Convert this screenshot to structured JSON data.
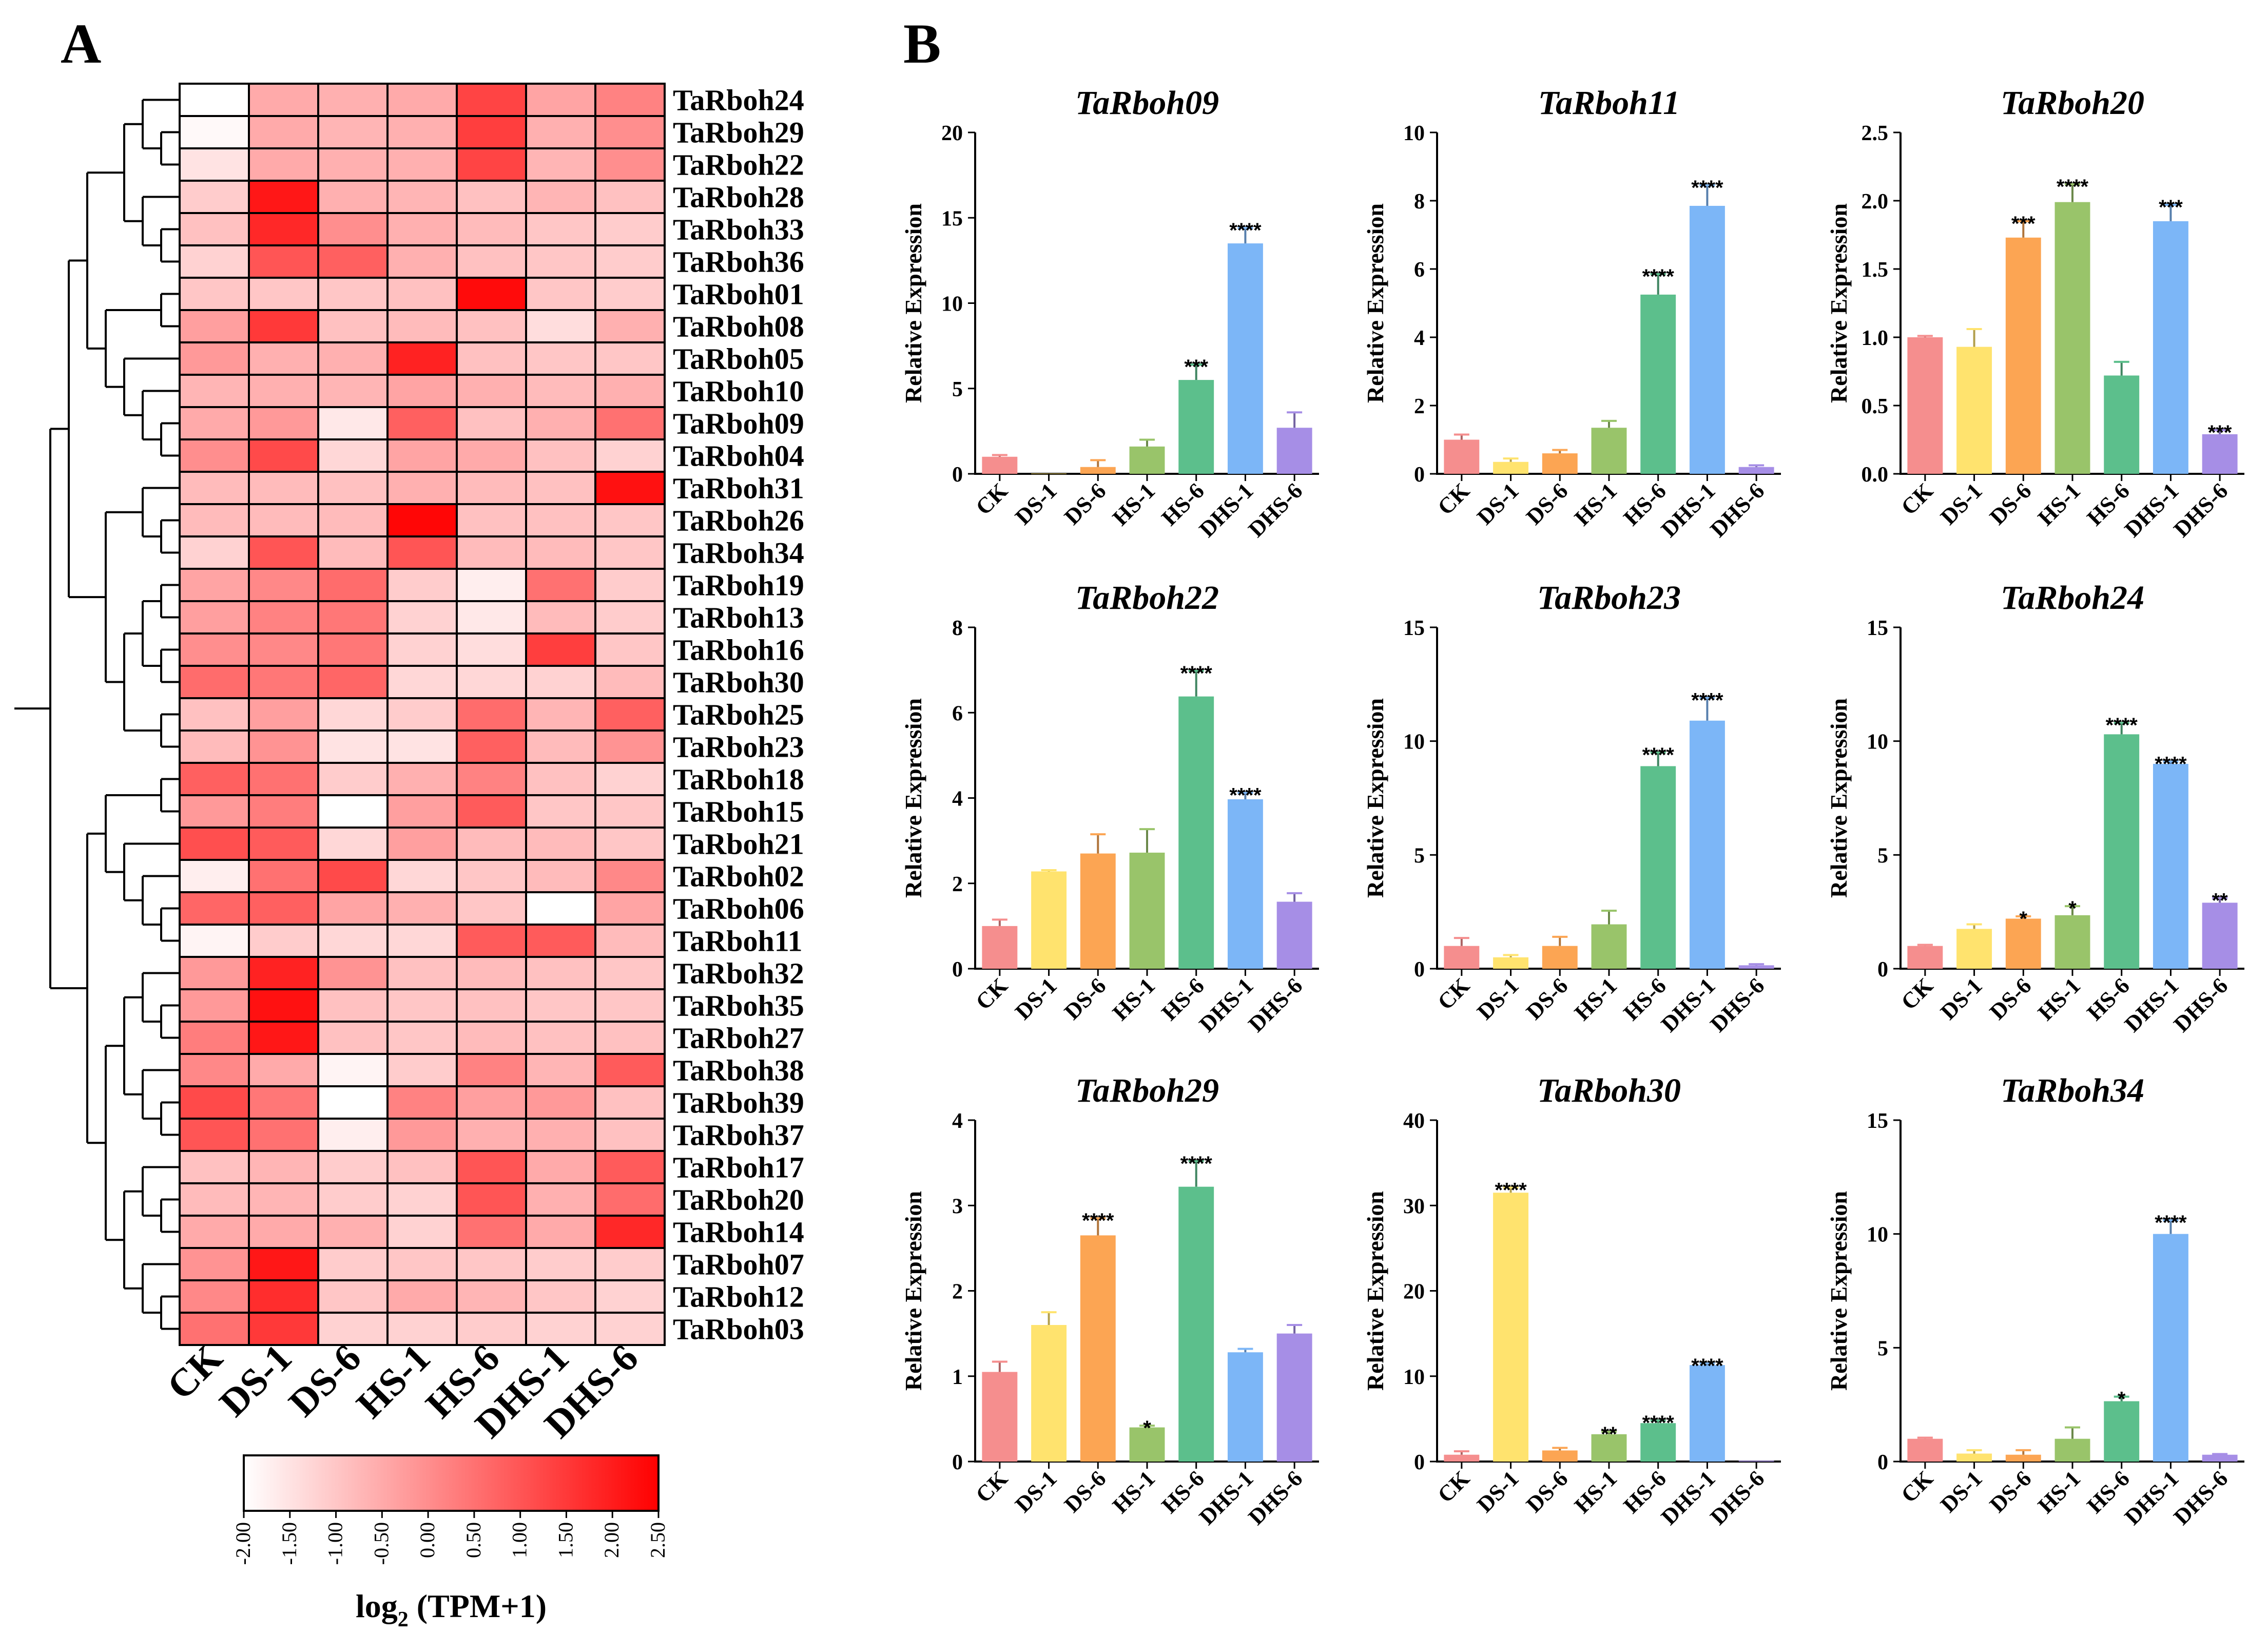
{
  "panels": {
    "a_label": "A",
    "b_label": "B"
  },
  "chart_data": [
    {
      "type": "heatmap",
      "panel": "A",
      "columns": [
        "CK",
        "DS-1",
        "DS-6",
        "HS-1",
        "HS-6",
        "DHS-1",
        "DHS-6"
      ],
      "rows": [
        "TaRboh24",
        "TaRboh29",
        "TaRboh22",
        "TaRboh28",
        "TaRboh33",
        "TaRboh36",
        "TaRboh01",
        "TaRboh08",
        "TaRboh05",
        "TaRboh10",
        "TaRboh09",
        "TaRboh04",
        "TaRboh31",
        "TaRboh26",
        "TaRboh34",
        "TaRboh19",
        "TaRboh13",
        "TaRboh16",
        "TaRboh30",
        "TaRboh25",
        "TaRboh23",
        "TaRboh18",
        "TaRboh15",
        "TaRboh21",
        "TaRboh02",
        "TaRboh06",
        "TaRboh11",
        "TaRboh32",
        "TaRboh35",
        "TaRboh27",
        "TaRboh38",
        "TaRboh39",
        "TaRboh37",
        "TaRboh17",
        "TaRboh20",
        "TaRboh14",
        "TaRboh07",
        "TaRboh12",
        "TaRboh03"
      ],
      "values": [
        [
          -2.0,
          -0.5,
          -0.6,
          -0.5,
          1.3,
          -0.4,
          0.2
        ],
        [
          -1.9,
          -0.5,
          -0.7,
          -0.6,
          1.4,
          -0.6,
          0.0
        ],
        [
          -1.5,
          -0.5,
          -0.6,
          -0.6,
          1.3,
          -0.7,
          0.0
        ],
        [
          -1.1,
          2.1,
          -0.6,
          -0.7,
          -0.9,
          -0.7,
          -0.9
        ],
        [
          -0.9,
          1.8,
          0.0,
          -0.6,
          -0.8,
          -1.0,
          -1.1
        ],
        [
          -1.2,
          1.0,
          0.8,
          -0.6,
          -0.9,
          -1.0,
          -1.1
        ],
        [
          -1.0,
          -1.0,
          -1.0,
          -0.9,
          2.3,
          -1.0,
          -1.1
        ],
        [
          -0.3,
          1.5,
          -0.9,
          -0.8,
          -0.9,
          -1.4,
          -0.6
        ],
        [
          -0.2,
          -0.6,
          -0.6,
          1.9,
          -0.9,
          -1.0,
          -1.0
        ],
        [
          -0.7,
          -0.6,
          -0.7,
          -0.4,
          -0.6,
          -0.8,
          -0.6
        ],
        [
          -0.5,
          -0.2,
          -1.6,
          0.8,
          -0.9,
          -0.6,
          0.5
        ],
        [
          0.0,
          1.2,
          -1.3,
          -0.4,
          -0.5,
          -0.9,
          -1.2
        ],
        [
          -0.8,
          -0.8,
          -0.9,
          -0.6,
          -0.8,
          -0.9,
          2.2
        ],
        [
          -0.8,
          -0.8,
          -0.8,
          2.4,
          -0.9,
          -0.9,
          -1.0
        ],
        [
          -1.2,
          1.0,
          -0.8,
          1.0,
          -0.8,
          -0.8,
          -1.0
        ],
        [
          -0.4,
          0.1,
          0.6,
          -1.1,
          -1.7,
          0.5,
          -1.1
        ],
        [
          -0.3,
          0.2,
          0.4,
          -1.2,
          -1.6,
          -0.8,
          -1.1
        ],
        [
          0.0,
          0.1,
          0.4,
          -1.2,
          -1.4,
          1.4,
          -1.0
        ],
        [
          0.6,
          0.4,
          0.7,
          -1.3,
          -1.3,
          -1.2,
          -0.8
        ],
        [
          -0.9,
          -0.3,
          -1.3,
          -1.1,
          0.6,
          -0.7,
          0.8
        ],
        [
          -0.8,
          -0.1,
          -1.5,
          -1.5,
          0.8,
          -0.8,
          -0.1
        ],
        [
          0.8,
          0.5,
          -1.1,
          -0.6,
          0.2,
          -0.9,
          -1.2
        ],
        [
          -0.2,
          0.3,
          -2.0,
          -0.3,
          0.9,
          -1.0,
          -1.0
        ],
        [
          1.1,
          0.9,
          -1.3,
          -0.3,
          -0.8,
          -0.8,
          -1.0
        ],
        [
          -1.7,
          0.5,
          1.2,
          -1.3,
          -1.0,
          -0.8,
          0.1
        ],
        [
          0.7,
          0.8,
          -0.4,
          -0.6,
          -1.0,
          -2.0,
          -0.4
        ],
        [
          -1.8,
          -1.1,
          -1.3,
          -1.3,
          0.9,
          0.9,
          -0.8
        ],
        [
          -0.2,
          1.9,
          -0.1,
          -0.9,
          -0.8,
          -0.9,
          -1.0
        ],
        [
          -0.2,
          2.2,
          -0.9,
          -1.0,
          -0.9,
          -1.0,
          -1.0
        ],
        [
          0.3,
          2.1,
          -0.9,
          -1.0,
          -0.8,
          -0.9,
          -0.9
        ],
        [
          0.1,
          -0.5,
          -1.8,
          -1.1,
          0.2,
          -0.7,
          0.9
        ],
        [
          1.2,
          0.4,
          -2.0,
          0.2,
          -0.3,
          -0.2,
          -0.9
        ],
        [
          1.0,
          0.5,
          -1.7,
          -0.2,
          -0.6,
          -0.6,
          -0.9
        ],
        [
          -0.9,
          -0.7,
          -1.1,
          -0.9,
          1.0,
          -0.5,
          0.9
        ],
        [
          -0.8,
          -0.7,
          -1.1,
          -1.2,
          1.0,
          -0.6,
          0.6
        ],
        [
          -0.5,
          -0.5,
          -0.6,
          -1.2,
          0.5,
          -0.5,
          1.8
        ],
        [
          -0.1,
          2.1,
          -1.1,
          -1.0,
          -1.0,
          -1.1,
          -1.1
        ],
        [
          0.1,
          1.7,
          -1.0,
          -0.5,
          -0.7,
          -1.0,
          -1.2
        ],
        [
          0.5,
          1.5,
          -1.2,
          -1.2,
          -1.1,
          -1.2,
          -1.2
        ]
      ],
      "colorbar": {
        "min": -2.0,
        "max": 2.5,
        "ticks": [
          "-2.00",
          "-1.50",
          "-1.00",
          "-0.50",
          "0.00",
          "0.50",
          "1.00",
          "1.50",
          "2.00",
          "2.50"
        ],
        "title_main": "log",
        "title_sub": "2",
        "title_rest": " (TPM+1)",
        "low_color": "#ffffff",
        "high_color": "#ff0000"
      }
    },
    {
      "type": "bar",
      "panel": "B",
      "title": "TaRboh09",
      "ylabel": "Relative Expression",
      "categories": [
        "CK",
        "DS-1",
        "DS-6",
        "HS-1",
        "HS-6",
        "DHS-1",
        "DHS-6"
      ],
      "values": [
        1.0,
        0.02,
        0.4,
        1.6,
        5.5,
        13.5,
        2.7
      ],
      "errors": [
        0.1,
        0.0,
        0.4,
        0.4,
        0.9,
        0.9,
        0.9
      ],
      "significance": [
        "",
        "",
        "",
        "",
        "***",
        "****",
        ""
      ],
      "ylim": [
        0,
        20
      ],
      "yticks": [
        "0",
        "5",
        "10",
        "15",
        "20"
      ]
    },
    {
      "type": "bar",
      "panel": "B",
      "title": "TaRboh11",
      "ylabel": "Relative Expression",
      "categories": [
        "CK",
        "DS-1",
        "DS-6",
        "HS-1",
        "HS-6",
        "DHS-1",
        "DHS-6"
      ],
      "values": [
        1.0,
        0.35,
        0.6,
        1.35,
        5.25,
        7.85,
        0.2
      ],
      "errors": [
        0.15,
        0.1,
        0.1,
        0.2,
        0.6,
        0.6,
        0.05
      ],
      "significance": [
        "",
        "",
        "",
        "",
        "****",
        "****",
        ""
      ],
      "ylim": [
        0,
        10
      ],
      "yticks": [
        "0",
        "2",
        "4",
        "6",
        "8",
        "10"
      ]
    },
    {
      "type": "bar",
      "panel": "B",
      "title": "TaRboh20",
      "ylabel": "Relative Expression",
      "categories": [
        "CK",
        "DS-1",
        "DS-6",
        "HS-1",
        "HS-6",
        "DHS-1",
        "DHS-6"
      ],
      "values": [
        1.0,
        0.93,
        1.73,
        1.99,
        0.72,
        1.85,
        0.29
      ],
      "errors": [
        0.01,
        0.13,
        0.12,
        0.13,
        0.1,
        0.12,
        0.03
      ],
      "significance": [
        "",
        "",
        "***",
        "****",
        "",
        "***",
        "***"
      ],
      "ylim": [
        0,
        2.5
      ],
      "yticks": [
        "0.0",
        "0.5",
        "1.0",
        "1.5",
        "2.0",
        "2.5"
      ]
    },
    {
      "type": "bar",
      "panel": "B",
      "title": "TaRboh22",
      "ylabel": "Relative Expression",
      "categories": [
        "CK",
        "DS-1",
        "DS-6",
        "HS-1",
        "HS-6",
        "DHS-1",
        "DHS-6"
      ],
      "values": [
        1.0,
        2.28,
        2.7,
        2.72,
        6.38,
        3.97,
        1.57
      ],
      "errors": [
        0.15,
        0.03,
        0.45,
        0.55,
        0.6,
        0.15,
        0.2
      ],
      "significance": [
        "",
        "",
        "",
        "",
        "****",
        "****",
        ""
      ],
      "ylim": [
        0,
        8
      ],
      "yticks": [
        "0",
        "2",
        "4",
        "6",
        "8"
      ]
    },
    {
      "type": "bar",
      "panel": "B",
      "title": "TaRboh23",
      "ylabel": "Relative Expression",
      "categories": [
        "CK",
        "DS-1",
        "DS-6",
        "HS-1",
        "HS-6",
        "DHS-1",
        "DHS-6"
      ],
      "values": [
        1.0,
        0.5,
        1.0,
        1.95,
        8.9,
        10.9,
        0.15
      ],
      "errors": [
        0.35,
        0.1,
        0.4,
        0.6,
        0.6,
        1.0,
        0.05
      ],
      "significance": [
        "",
        "",
        "",
        "",
        "****",
        "****",
        ""
      ],
      "ylim": [
        0,
        15
      ],
      "yticks": [
        "0",
        "5",
        "10",
        "15"
      ]
    },
    {
      "type": "bar",
      "panel": "B",
      "title": "TaRboh24",
      "ylabel": "Relative Expression",
      "categories": [
        "CK",
        "DS-1",
        "DS-6",
        "HS-1",
        "HS-6",
        "DHS-1",
        "DHS-6"
      ],
      "values": [
        1.0,
        1.75,
        2.2,
        2.35,
        10.3,
        9.0,
        2.9
      ],
      "errors": [
        0.05,
        0.2,
        0.1,
        0.4,
        0.5,
        0.1,
        0.2
      ],
      "significance": [
        "",
        "",
        "*",
        "*",
        "****",
        "****",
        "**"
      ],
      "ylim": [
        0,
        15
      ],
      "yticks": [
        "0",
        "5",
        "10",
        "15"
      ]
    },
    {
      "type": "bar",
      "panel": "B",
      "title": "TaRboh29",
      "ylabel": "Relative Expression",
      "categories": [
        "CK",
        "DS-1",
        "DS-6",
        "HS-1",
        "HS-6",
        "DHS-1",
        "DHS-6"
      ],
      "values": [
        1.05,
        1.6,
        2.65,
        0.4,
        3.22,
        1.28,
        1.5
      ],
      "errors": [
        0.12,
        0.15,
        0.2,
        0.02,
        0.3,
        0.04,
        0.1
      ],
      "significance": [
        "",
        "",
        "****",
        "*",
        "****",
        "",
        ""
      ],
      "ylim": [
        0,
        4
      ],
      "yticks": [
        "0",
        "1",
        "2",
        "3",
        "4"
      ]
    },
    {
      "type": "bar",
      "panel": "B",
      "title": "TaRboh30",
      "ylabel": "Relative Expression",
      "categories": [
        "CK",
        "DS-1",
        "DS-6",
        "HS-1",
        "HS-6",
        "DHS-1",
        "DHS-6"
      ],
      "values": [
        0.8,
        31.5,
        1.3,
        3.2,
        4.5,
        11.3,
        0.1
      ],
      "errors": [
        0.4,
        0.6,
        0.3,
        0.3,
        0.3,
        0.2,
        0.0
      ],
      "significance": [
        "",
        "****",
        "",
        "**",
        "****",
        "****",
        ""
      ],
      "ylim": [
        0,
        40
      ],
      "yticks": [
        "0",
        "10",
        "20",
        "30",
        "40"
      ]
    },
    {
      "type": "bar",
      "panel": "B",
      "title": "TaRboh34",
      "ylabel": "Relative Expression",
      "categories": [
        "CK",
        "DS-1",
        "DS-6",
        "HS-1",
        "HS-6",
        "DHS-1",
        "DHS-6"
      ],
      "values": [
        1.0,
        0.35,
        0.3,
        1.0,
        2.65,
        10.0,
        0.3
      ],
      "errors": [
        0.05,
        0.15,
        0.2,
        0.5,
        0.2,
        0.6,
        0.03
      ],
      "significance": [
        "",
        "",
        "",
        "",
        "*",
        "****",
        ""
      ],
      "ylim": [
        0,
        15
      ],
      "yticks": [
        "0",
        "5",
        "10",
        "15"
      ]
    }
  ],
  "bar_colors": [
    "#f58e8e",
    "#ffe36e",
    "#fca553",
    "#99c46a",
    "#5cbf8c",
    "#7cb6f7",
    "#a68ee6"
  ]
}
